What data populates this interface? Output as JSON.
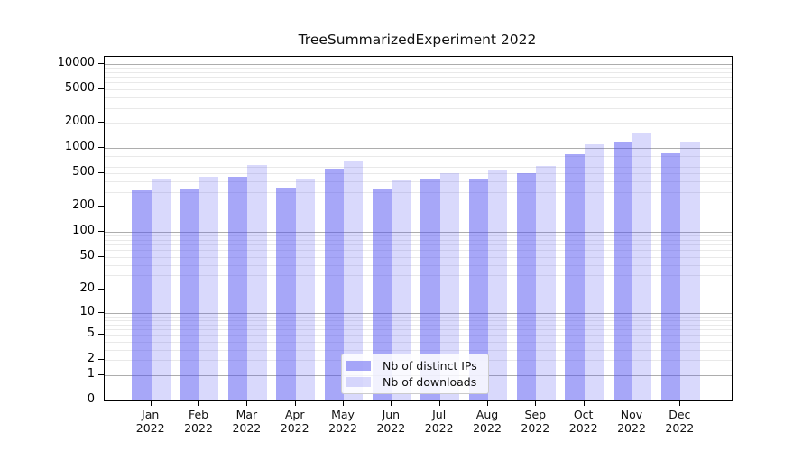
{
  "title": "TreeSummarizedExperiment 2022",
  "legend": {
    "items": [
      {
        "label": "Nb of distinct IPs",
        "color": "rgba(80,80,242,0.50)"
      },
      {
        "label": "Nb of downloads",
        "color": "rgba(80,80,242,0.22)"
      }
    ]
  },
  "colors": {
    "bar_distinct_ips": "rgba(80,80,242,0.50)",
    "bar_downloads": "rgba(80,80,242,0.22)",
    "grid_minor": "#e9e9e9",
    "grid_major": "#adadad",
    "spine": "#000000",
    "legend_border": "#cccccc"
  },
  "chart_data": {
    "type": "bar",
    "title": "TreeSummarizedExperiment 2022",
    "xlabel": "",
    "ylabel": "",
    "year": "2022",
    "categories": [
      "Jan 2022",
      "Feb 2022",
      "Mar 2022",
      "Apr 2022",
      "May 2022",
      "Jun 2022",
      "Jul 2022",
      "Aug 2022",
      "Sep 2022",
      "Oct 2022",
      "Nov 2022",
      "Dec 2022"
    ],
    "series": [
      {
        "name": "Nb of distinct IPs",
        "values": [
          315,
          330,
          450,
          340,
          565,
          320,
          420,
          430,
          500,
          850,
          1190,
          865
        ]
      },
      {
        "name": "Nb of downloads",
        "values": [
          435,
          450,
          630,
          430,
          700,
          415,
          505,
          535,
          615,
          1100,
          1500,
          1200
        ]
      }
    ],
    "yscale": "log1p",
    "yticks": [
      0,
      1,
      2,
      5,
      10,
      20,
      50,
      100,
      200,
      500,
      1000,
      2000,
      5000,
      10000
    ],
    "ylim": [
      0,
      12200
    ],
    "grid": "both",
    "legend_position": "lower center"
  }
}
